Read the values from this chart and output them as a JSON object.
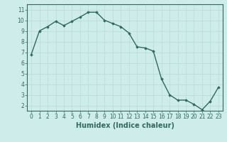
{
  "x": [
    0,
    1,
    2,
    3,
    4,
    5,
    6,
    7,
    8,
    9,
    10,
    11,
    12,
    13,
    14,
    15,
    16,
    17,
    18,
    19,
    20,
    21,
    22,
    23
  ],
  "y": [
    6.8,
    9.0,
    9.4,
    9.9,
    9.5,
    9.9,
    10.3,
    10.75,
    10.75,
    10.0,
    9.7,
    9.4,
    8.8,
    7.5,
    7.4,
    7.1,
    4.5,
    3.0,
    2.5,
    2.5,
    2.1,
    1.6,
    2.4,
    3.7
  ],
  "line_color": "#2e6b5e",
  "marker": "D",
  "markersize": 1.8,
  "linewidth": 1.0,
  "bg_color": "#ceecea",
  "grid_color": "#b8dbd8",
  "xlabel": "Humidex (Indice chaleur)",
  "xlim": [
    -0.5,
    23.5
  ],
  "ylim": [
    1.5,
    11.5
  ],
  "yticks": [
    2,
    3,
    4,
    5,
    6,
    7,
    8,
    9,
    10,
    11
  ],
  "xticks": [
    0,
    1,
    2,
    3,
    4,
    5,
    6,
    7,
    8,
    9,
    10,
    11,
    12,
    13,
    14,
    15,
    16,
    17,
    18,
    19,
    20,
    21,
    22,
    23
  ],
  "xlabel_fontsize": 7,
  "tick_fontsize": 5.5,
  "tick_color": "#2e6b5e",
  "label_color": "#2e6b5e",
  "spine_color": "#2e6b5e"
}
